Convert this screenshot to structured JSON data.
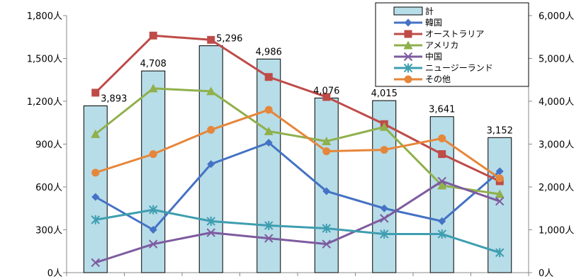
{
  "chart_data": {
    "type": "bar+line",
    "categories": [
      "",
      "",
      "",
      "",
      "",
      "",
      "",
      ""
    ],
    "left_axis": {
      "ylim": [
        0,
        1800
      ],
      "ticks": [
        0,
        300,
        600,
        900,
        1200,
        1500,
        1800
      ],
      "tick_labels": [
        "0人",
        "300人",
        "600人",
        "900人",
        "1,200人",
        "1,500人",
        "1,800人"
      ]
    },
    "right_axis": {
      "ylim": [
        0,
        6000
      ],
      "ticks": [
        0,
        1000,
        2000,
        3000,
        4000,
        5000,
        6000
      ],
      "tick_labels": [
        "0人",
        "1,000人",
        "2,000人",
        "3,000人",
        "4,000人",
        "5,000人",
        "6,000人"
      ]
    },
    "bar_series": {
      "name": "計",
      "axis": "right",
      "color": "#b7dde8",
      "values": [
        3893,
        4708,
        5296,
        4986,
        4076,
        4015,
        3641,
        3152
      ],
      "data_labels": [
        "3,893",
        "4,708",
        "5,296",
        "4,986",
        "4,076",
        "4,015",
        "3,641",
        "3,152"
      ]
    },
    "line_series": [
      {
        "name": "韓国",
        "color": "#4472c4",
        "marker": "diamond",
        "values": [
          530,
          300,
          760,
          910,
          570,
          450,
          360,
          710
        ]
      },
      {
        "name": "オーストラリア",
        "color": "#be4b48",
        "marker": "square",
        "values": [
          1260,
          1660,
          1630,
          1370,
          1230,
          1040,
          830,
          640
        ]
      },
      {
        "name": "アメリカ",
        "color": "#8fb04c",
        "marker": "triangle",
        "values": [
          970,
          1290,
          1270,
          990,
          920,
          1020,
          610,
          550
        ]
      },
      {
        "name": "中国",
        "color": "#7e5b9f",
        "marker": "x",
        "values": [
          70,
          200,
          280,
          240,
          200,
          380,
          640,
          500
        ]
      },
      {
        "name": "ニュージーランド",
        "color": "#3e9eb0",
        "marker": "star",
        "values": [
          370,
          440,
          360,
          330,
          310,
          270,
          270,
          140
        ]
      },
      {
        "name": "その他",
        "color": "#e6863a",
        "marker": "circle",
        "values": [
          700,
          830,
          1000,
          1140,
          850,
          860,
          940,
          660
        ]
      }
    ],
    "legend_position": "top-right",
    "grid": false
  }
}
